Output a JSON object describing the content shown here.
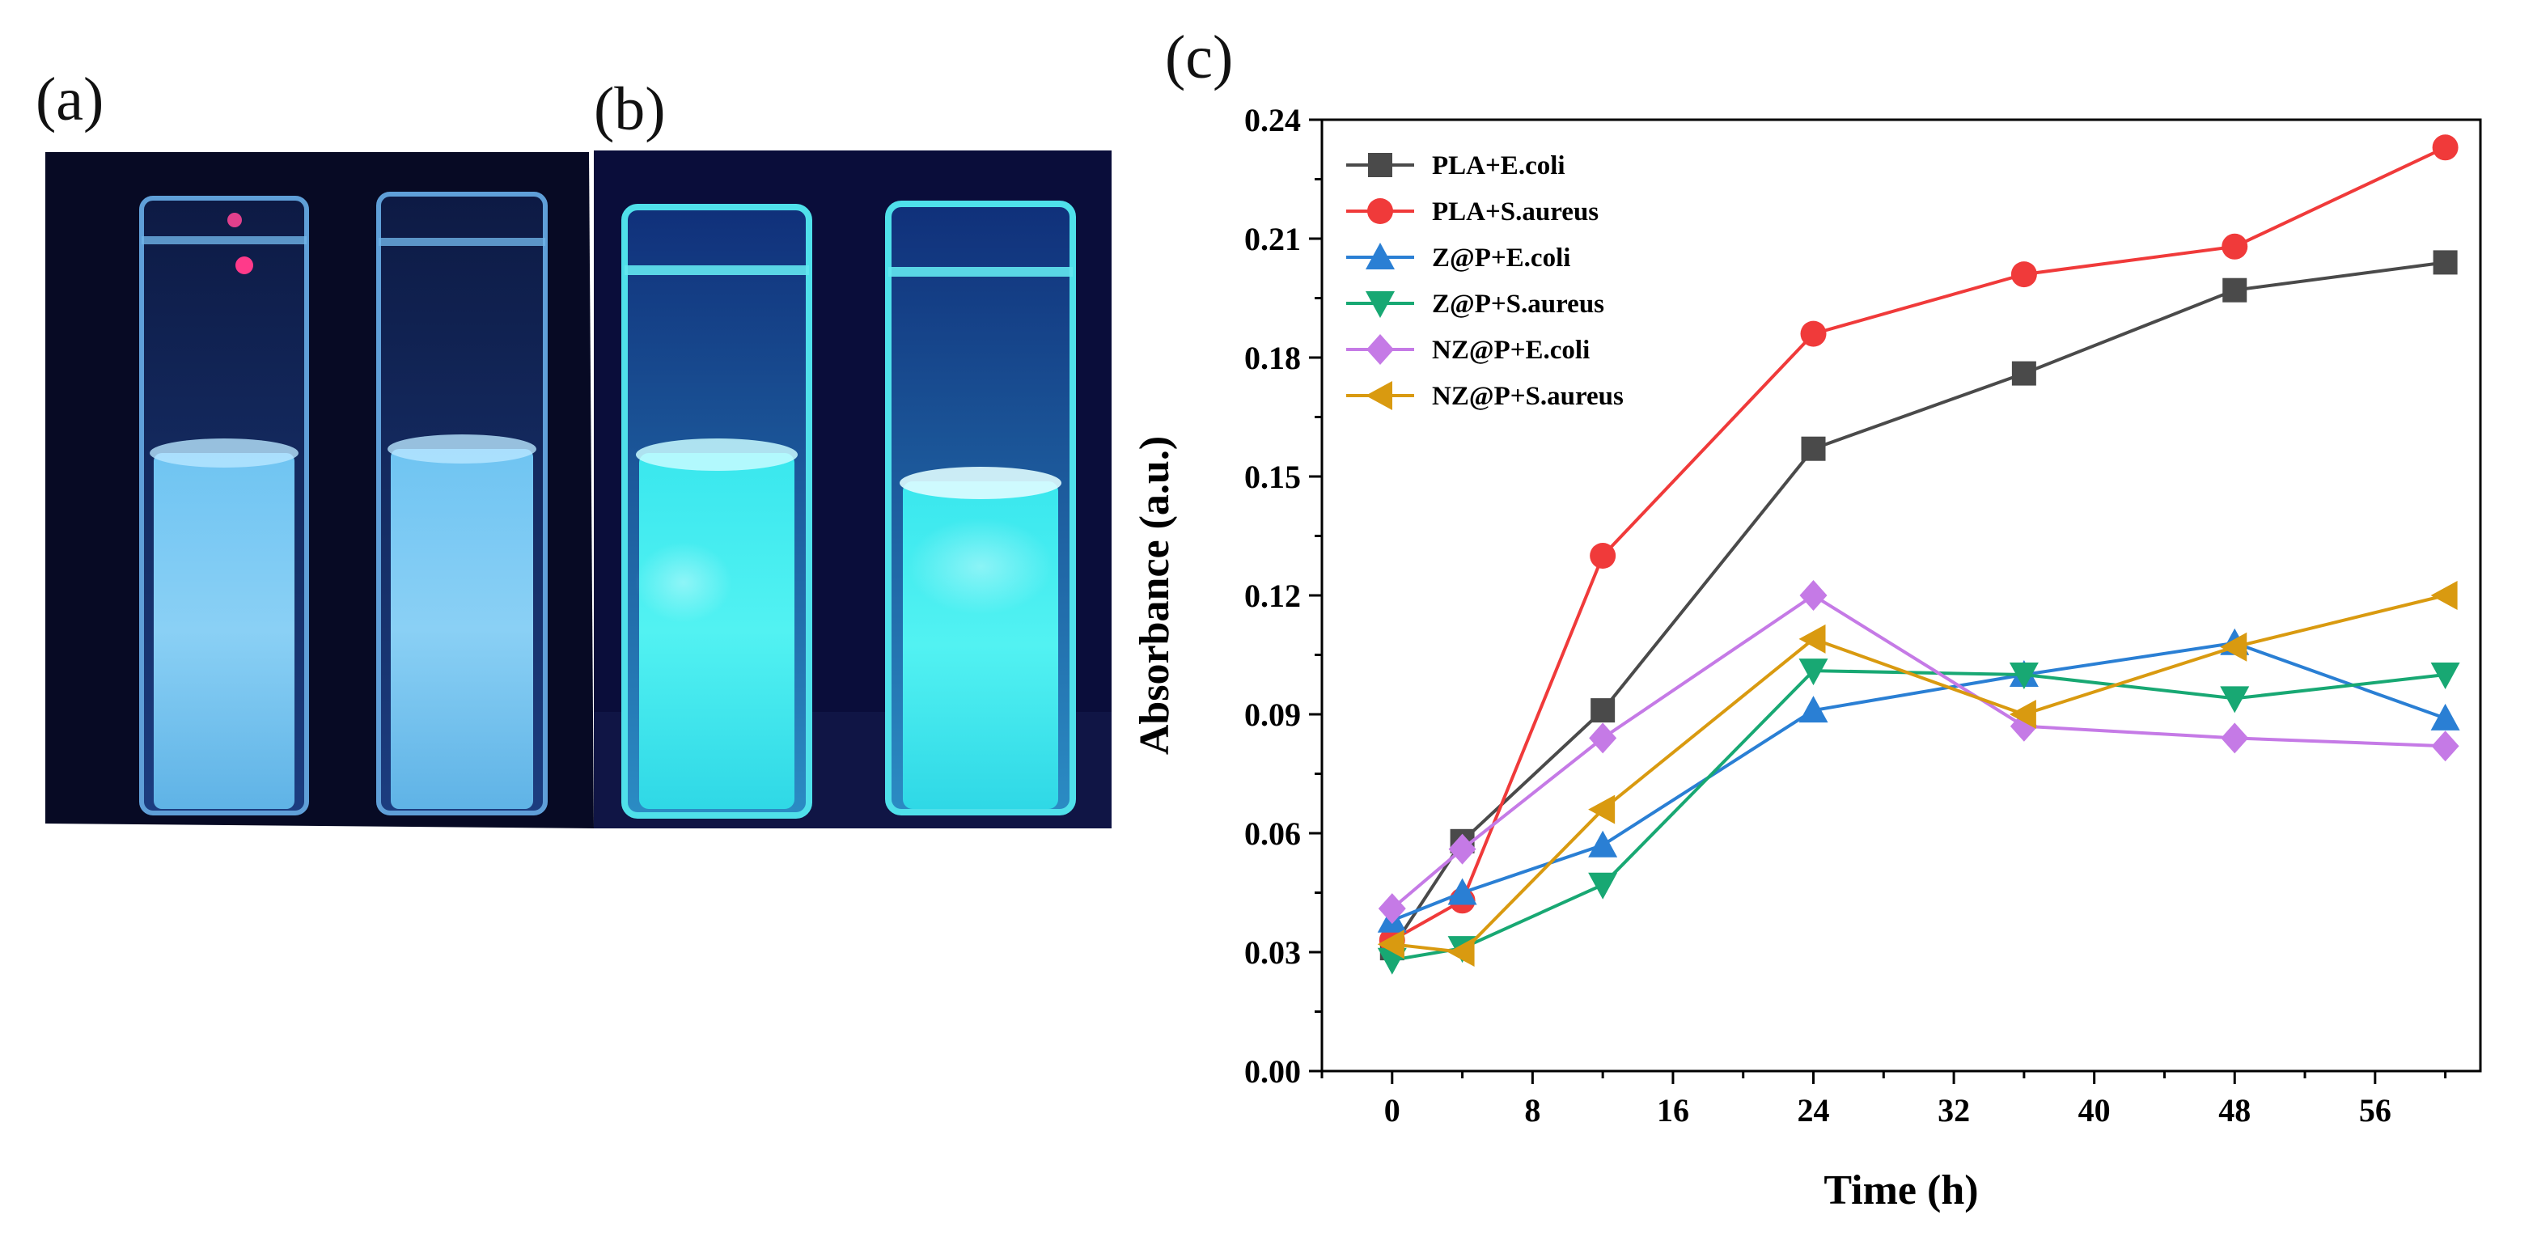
{
  "panels": {
    "a": "(a)",
    "b": "(b)",
    "c": "(c)"
  },
  "photo_colors": {
    "background": "#0a0a2e",
    "glow_dim": "#5fb8ea",
    "glow_bright": "#3ff0ee"
  },
  "chart_data": {
    "type": "line",
    "title": "",
    "xlabel": "Time (h)",
    "ylabel": "Absorbance (a.u.)",
    "xlim": [
      -4,
      62
    ],
    "ylim": [
      0,
      0.24
    ],
    "xticks": [
      0,
      8,
      16,
      24,
      32,
      40,
      48,
      56
    ],
    "xtick_labels": [
      "0",
      "8",
      "16",
      "24",
      "32",
      "40",
      "48",
      "56"
    ],
    "yticks": [
      0,
      0.03,
      0.06,
      0.09,
      0.12,
      0.15,
      0.18,
      0.21,
      0.24
    ],
    "ytick_labels": [
      "0.00",
      "0.03",
      "0.06",
      "0.09",
      "0.12",
      "0.15",
      "0.18",
      "0.21",
      "0.24"
    ],
    "legend_position": "top-left",
    "x": [
      0,
      4,
      12,
      24,
      36,
      48,
      60
    ],
    "series": [
      {
        "name": "PLA+E.coli",
        "marker": "square",
        "color": "#4a4a4a",
        "values": [
          0.031,
          0.058,
          0.091,
          0.157,
          0.176,
          0.197,
          0.204
        ]
      },
      {
        "name": "PLA+S.aureus",
        "marker": "circle",
        "color": "#f03a3a",
        "values": [
          0.033,
          0.043,
          0.13,
          0.186,
          0.201,
          0.208,
          0.233
        ]
      },
      {
        "name": "Z@P+E.coli",
        "marker": "triangle-up",
        "color": "#2a7fd4",
        "values": [
          0.038,
          0.045,
          0.057,
          0.091,
          0.1,
          0.108,
          0.089
        ]
      },
      {
        "name": "Z@P+S.aureus",
        "marker": "triangle-down",
        "color": "#18a873",
        "values": [
          0.028,
          0.031,
          0.047,
          0.101,
          0.1,
          0.094,
          0.1
        ]
      },
      {
        "name": "NZ@P+E.coli",
        "marker": "diamond",
        "color": "#c57ae6",
        "values": [
          0.041,
          0.056,
          0.084,
          0.12,
          0.087,
          0.084,
          0.082
        ]
      },
      {
        "name": "NZ@P+S.aureus",
        "marker": "triangle-left",
        "color": "#d99a10",
        "values": [
          0.032,
          0.03,
          0.066,
          0.109,
          0.09,
          0.107,
          0.12
        ]
      }
    ]
  }
}
